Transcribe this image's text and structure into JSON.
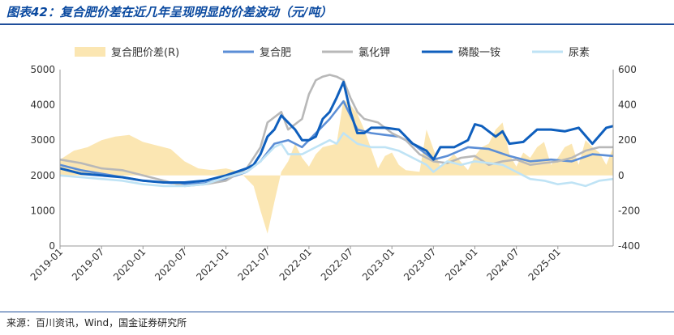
{
  "header": {
    "title": "图表42：复合肥价差在近几年呈现明显的价差波动（元/吨）"
  },
  "footer": {
    "source": "来源：百川资讯，Wind，国金证券研究所"
  },
  "chart_data": {
    "type": "line",
    "title": "图表42：复合肥价差在近几年呈现明显的价差波动（元/吨）",
    "xlabel": "",
    "ylabel": "",
    "x_ticks": [
      "2019-01",
      "2019-07",
      "2020-01",
      "2020-07",
      "2021-01",
      "2021-07",
      "2022-01",
      "2022-07",
      "2023-01",
      "2023-07",
      "2024-01",
      "2024-07",
      "2025-01"
    ],
    "x_range": [
      "2019-01",
      "2025-09"
    ],
    "ylim": [
      0,
      5000
    ],
    "y_ticks": [
      0,
      1000,
      2000,
      3000,
      4000,
      5000
    ],
    "y2lim": [
      -400,
      600
    ],
    "y2_ticks": [
      -400,
      -200,
      0,
      200,
      400,
      600
    ],
    "grid": false,
    "legend_position": "top",
    "series": [
      {
        "name": "复合肥价差(R)",
        "type": "area",
        "axis": "right",
        "color": "#fbe6b2",
        "x": [
          "2019-01",
          "2019-03",
          "2019-05",
          "2019-07",
          "2019-09",
          "2019-11",
          "2020-01",
          "2020-03",
          "2020-05",
          "2020-07",
          "2020-09",
          "2020-11",
          "2021-01",
          "2021-03",
          "2021-05",
          "2021-06",
          "2021-07",
          "2021-08",
          "2021-09",
          "2021-10",
          "2021-11",
          "2021-12",
          "2022-01",
          "2022-02",
          "2022-03",
          "2022-04",
          "2022-05",
          "2022-06",
          "2022-07",
          "2022-08",
          "2022-09",
          "2022-10",
          "2022-11",
          "2022-12",
          "2023-01",
          "2023-02",
          "2023-03",
          "2023-05",
          "2023-06",
          "2023-07",
          "2023-08",
          "2023-10",
          "2023-12",
          "2024-01",
          "2024-02",
          "2024-03",
          "2024-04",
          "2024-05",
          "2024-06",
          "2024-07",
          "2024-08",
          "2024-09",
          "2024-10",
          "2024-11",
          "2024-12",
          "2025-01",
          "2025-02",
          "2025-03",
          "2025-04",
          "2025-05",
          "2025-06",
          "2025-07",
          "2025-08",
          "2025-09"
        ],
        "values": [
          90,
          140,
          160,
          200,
          220,
          230,
          190,
          170,
          150,
          80,
          40,
          30,
          40,
          20,
          -60,
          -200,
          -330,
          -150,
          20,
          80,
          180,
          100,
          50,
          120,
          160,
          170,
          180,
          430,
          400,
          350,
          260,
          150,
          40,
          110,
          130,
          60,
          30,
          20,
          260,
          150,
          50,
          120,
          30,
          110,
          160,
          180,
          260,
          300,
          120,
          50,
          130,
          100,
          160,
          190,
          60,
          100,
          160,
          180,
          60,
          200,
          160,
          130,
          60,
          160
        ]
      },
      {
        "name": "复合肥",
        "axis": "left",
        "color": "#5b8ed6",
        "x": [
          "2019-01",
          "2019-04",
          "2019-07",
          "2019-10",
          "2020-01",
          "2020-04",
          "2020-07",
          "2020-10",
          "2021-01",
          "2021-04",
          "2021-06",
          "2021-08",
          "2021-10",
          "2021-12",
          "2022-02",
          "2022-04",
          "2022-06",
          "2022-07",
          "2022-08",
          "2022-10",
          "2022-12",
          "2023-02",
          "2023-04",
          "2023-06",
          "2023-07",
          "2023-09",
          "2023-12",
          "2024-03",
          "2024-06",
          "2024-09",
          "2024-12",
          "2025-03",
          "2025-06",
          "2025-09"
        ],
        "values": [
          2300,
          2150,
          2050,
          1950,
          1850,
          1800,
          1750,
          1780,
          1900,
          2100,
          2400,
          2900,
          3000,
          2800,
          3200,
          3600,
          4100,
          3700,
          3300,
          3200,
          3150,
          3100,
          2900,
          2600,
          2450,
          2550,
          2800,
          2750,
          2550,
          2400,
          2450,
          2400,
          2600,
          2550
        ]
      },
      {
        "name": "氯化钾",
        "axis": "left",
        "color": "#b8b8b8",
        "x": [
          "2019-01",
          "2019-04",
          "2019-07",
          "2019-10",
          "2020-01",
          "2020-04",
          "2020-07",
          "2020-10",
          "2021-01",
          "2021-04",
          "2021-06",
          "2021-07",
          "2021-09",
          "2021-10",
          "2021-12",
          "2022-01",
          "2022-02",
          "2022-03",
          "2022-04",
          "2022-05",
          "2022-06",
          "2022-07",
          "2022-08",
          "2022-09",
          "2022-11",
          "2023-01",
          "2023-03",
          "2023-05",
          "2023-07",
          "2023-09",
          "2023-11",
          "2024-01",
          "2024-03",
          "2024-05",
          "2024-07",
          "2024-09",
          "2024-11",
          "2025-01",
          "2025-03",
          "2025-05",
          "2025-07",
          "2025-09"
        ],
        "values": [
          2450,
          2350,
          2200,
          2150,
          2000,
          1850,
          1700,
          1750,
          1850,
          2200,
          2800,
          3500,
          3800,
          3300,
          3600,
          4300,
          4700,
          4800,
          4850,
          4800,
          4700,
          4200,
          3800,
          3600,
          3500,
          3200,
          3000,
          2600,
          2400,
          2350,
          2500,
          2550,
          2300,
          2400,
          2450,
          2300,
          2350,
          2400,
          2500,
          2700,
          2800,
          2800
        ]
      },
      {
        "name": "磷酸一铵",
        "axis": "left",
        "color": "#0f5fbd",
        "x": [
          "2019-01",
          "2019-04",
          "2019-07",
          "2019-10",
          "2020-01",
          "2020-04",
          "2020-07",
          "2020-10",
          "2021-01",
          "2021-04",
          "2021-05",
          "2021-06",
          "2021-07",
          "2021-08",
          "2021-09",
          "2021-10",
          "2021-11",
          "2021-12",
          "2022-01",
          "2022-02",
          "2022-03",
          "2022-04",
          "2022-05",
          "2022-06",
          "2022-07",
          "2022-08",
          "2022-09",
          "2022-10",
          "2022-12",
          "2023-02",
          "2023-04",
          "2023-06",
          "2023-07",
          "2023-08",
          "2023-10",
          "2023-12",
          "2024-01",
          "2024-02",
          "2024-04",
          "2024-05",
          "2024-06",
          "2024-08",
          "2024-10",
          "2024-12",
          "2025-02",
          "2025-04",
          "2025-06",
          "2025-08",
          "2025-09"
        ],
        "values": [
          2200,
          2050,
          2000,
          1950,
          1850,
          1800,
          1800,
          1850,
          2000,
          2200,
          2300,
          2600,
          3100,
          3300,
          3700,
          3500,
          3300,
          3000,
          3000,
          3100,
          3600,
          3800,
          4200,
          4650,
          3800,
          3200,
          3200,
          3350,
          3350,
          3300,
          2900,
          2700,
          2450,
          2800,
          2800,
          3000,
          3450,
          3400,
          3100,
          3250,
          2900,
          2950,
          3300,
          3300,
          3250,
          3350,
          2900,
          3350,
          3400
        ]
      },
      {
        "name": "尿素",
        "axis": "left",
        "color": "#bfe3f5",
        "x": [
          "2019-01",
          "2019-04",
          "2019-07",
          "2019-10",
          "2020-01",
          "2020-04",
          "2020-07",
          "2020-10",
          "2021-01",
          "2021-04",
          "2021-06",
          "2021-08",
          "2021-09",
          "2021-10",
          "2021-12",
          "2022-02",
          "2022-04",
          "2022-05",
          "2022-06",
          "2022-08",
          "2022-10",
          "2022-12",
          "2023-02",
          "2023-04",
          "2023-06",
          "2023-07",
          "2023-09",
          "2023-11",
          "2024-01",
          "2024-03",
          "2024-05",
          "2024-07",
          "2024-09",
          "2024-11",
          "2025-01",
          "2025-03",
          "2025-05",
          "2025-07",
          "2025-09"
        ],
        "values": [
          2000,
          1950,
          1900,
          1850,
          1750,
          1700,
          1700,
          1750,
          1950,
          2100,
          2400,
          2800,
          2900,
          2600,
          2600,
          2800,
          3000,
          2900,
          3200,
          2900,
          2800,
          2800,
          2700,
          2500,
          2300,
          2100,
          2400,
          2300,
          2400,
          2350,
          2300,
          2100,
          1900,
          1850,
          1750,
          1800,
          1700,
          1850,
          1900
        ]
      }
    ]
  }
}
